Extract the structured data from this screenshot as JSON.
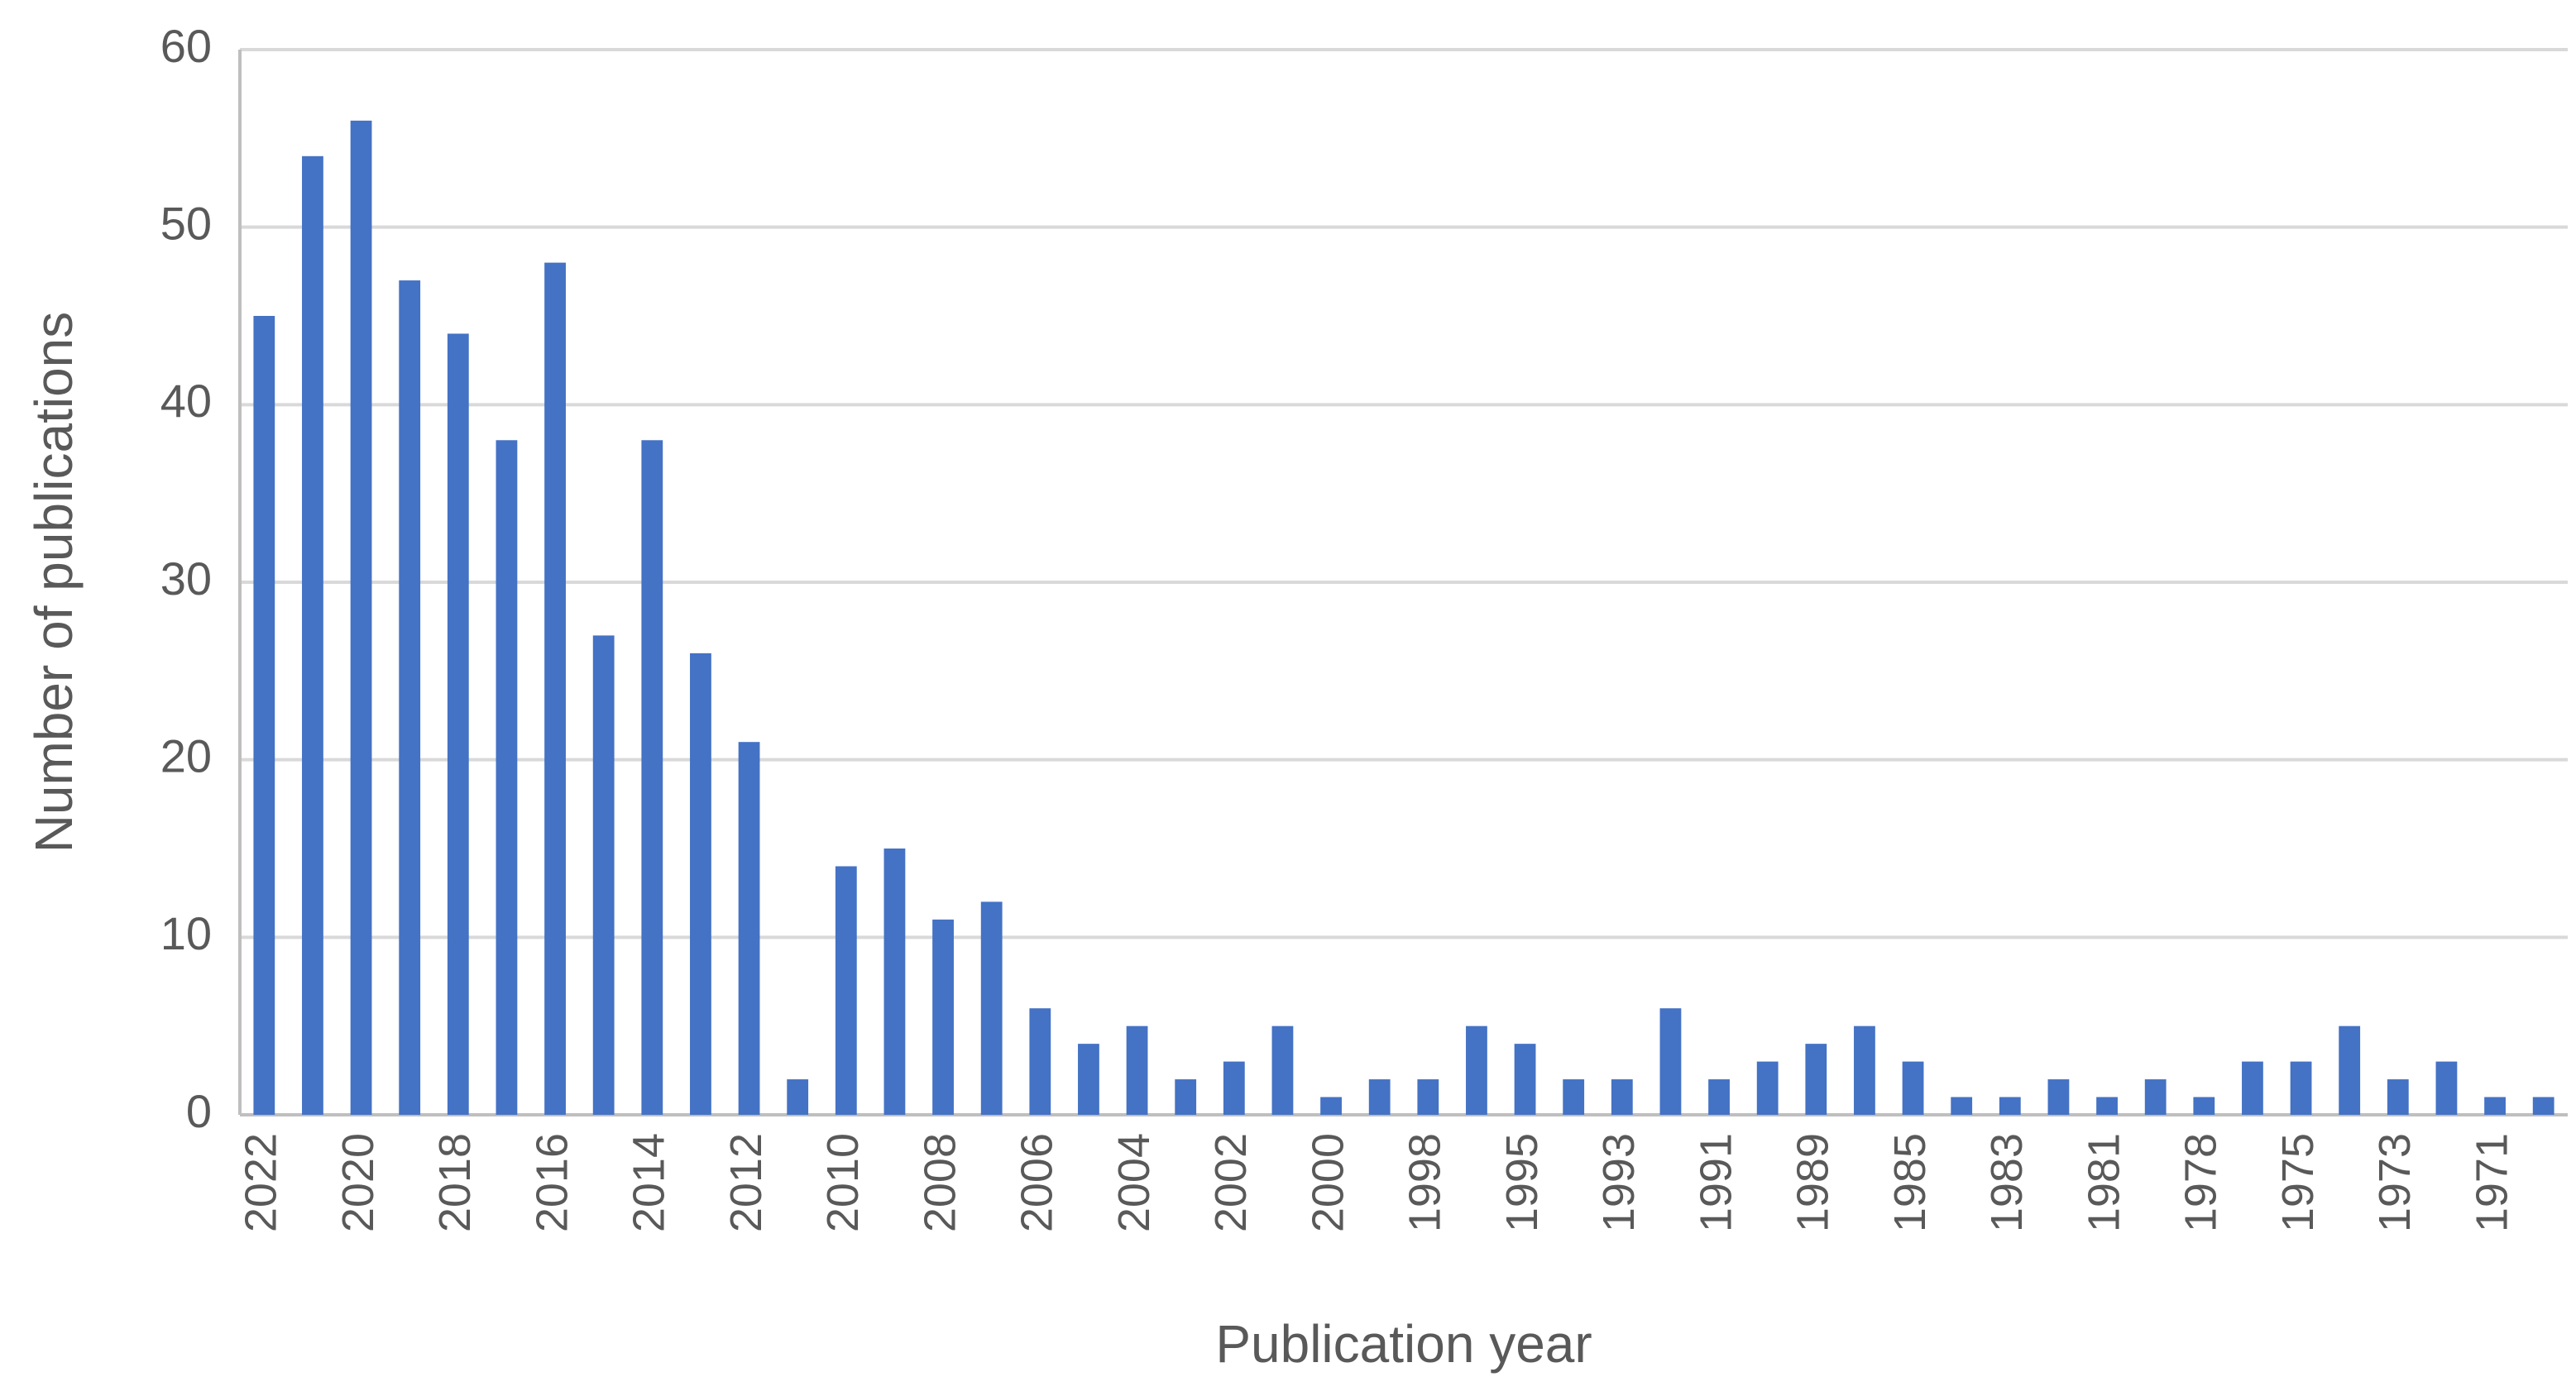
{
  "chart_data": {
    "type": "bar",
    "x_label": "Publication year",
    "y_label": "Number of publications",
    "categories": [
      "2022",
      null,
      "2020",
      null,
      "2018",
      null,
      "2016",
      null,
      "2014",
      null,
      "2012",
      null,
      "2010",
      null,
      "2008",
      null,
      "2006",
      null,
      "2004",
      null,
      "2002",
      null,
      "2000",
      null,
      "1998",
      null,
      "1995",
      null,
      "1993",
      null,
      "1991",
      null,
      "1989",
      null,
      "1985",
      null,
      "1983",
      null,
      "1981",
      null,
      "1978",
      null,
      "1975",
      null,
      "1973",
      null,
      "1971",
      null
    ],
    "values": [
      45,
      54,
      56,
      47,
      44,
      38,
      48,
      27,
      38,
      26,
      21,
      2,
      14,
      15,
      11,
      12,
      6,
      4,
      5,
      2,
      3,
      5,
      1,
      2,
      2,
      5,
      4,
      2,
      2,
      6,
      2,
      3,
      4,
      5,
      3,
      1,
      1,
      2,
      1,
      2,
      1,
      3,
      3,
      5,
      2,
      3,
      1,
      1
    ],
    "color": "#4472c4",
    "ylim": [
      0,
      60
    ],
    "yticks": [
      0,
      10,
      20,
      30,
      40,
      50,
      60
    ],
    "grid": true
  }
}
